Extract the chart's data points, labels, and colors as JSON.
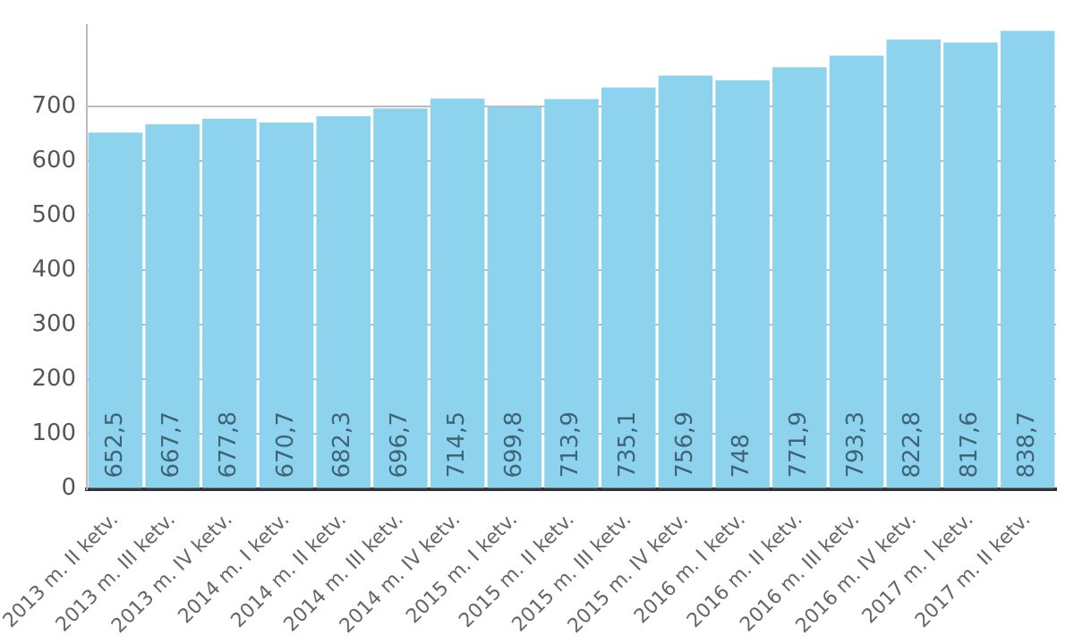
{
  "chart_data": {
    "type": "bar",
    "categories": [
      "2013 m. II ketv.",
      "2013 m. III ketv.",
      "2013 m. IV ketv.",
      "2014 m. I ketv.",
      "2014 m. II ketv.",
      "2014 m. III ketv.",
      "2014 m. IV ketv.",
      "2015 m. I ketv.",
      "2015 m. II ketv.",
      "2015 m. III ketv.",
      "2015 m. IV ketv.",
      "2016 m. I ketv.",
      "2016 m. II ketv.",
      "2016 m. III ketv.",
      "2016 m. IV ketv.",
      "2017 m. I ketv.",
      "2017 m. II ketv."
    ],
    "values": [
      652.5,
      667.7,
      677.8,
      670.7,
      682.3,
      696.7,
      714.5,
      699.8,
      713.9,
      735.1,
      756.9,
      748,
      771.9,
      793.3,
      822.8,
      817.6,
      838.7
    ],
    "value_labels": [
      "652,5",
      "667,7",
      "677,8",
      "670,7",
      "682,3",
      "696,7",
      "714,5",
      "699,8",
      "713,9",
      "735,1",
      "756,9",
      "748",
      "771,9",
      "793,3",
      "822,8",
      "817,6",
      "838,7"
    ],
    "color": "#8dd3ee",
    "ylim": [
      0,
      850
    ],
    "yticks": [
      0,
      100,
      200,
      300,
      400,
      500,
      600,
      700
    ],
    "grid": "y",
    "legend": false
  }
}
